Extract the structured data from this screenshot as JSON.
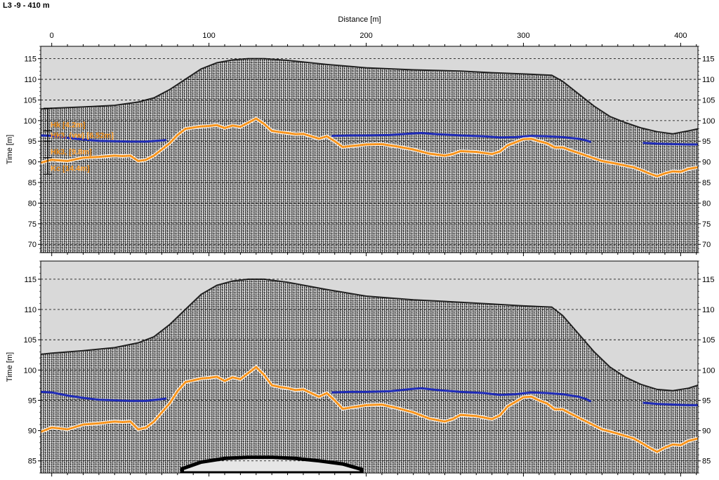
{
  "title": "L3 -9 - 410 m",
  "chart_data": [
    {
      "type": "line",
      "title": "L3 -9 - 410 m",
      "xlabel": "Distance [m]",
      "ylabel": "Time [m]",
      "xlim": [
        -7,
        411
      ],
      "ylim": [
        68,
        118
      ],
      "xticks": [
        0,
        100,
        200,
        300,
        400
      ],
      "yticks": [
        70,
        75,
        80,
        85,
        90,
        95,
        100,
        105,
        110,
        115
      ],
      "grid": true,
      "background": "#d9d9d9",
      "surface": {
        "x": [
          -7,
          0,
          20,
          40,
          55,
          65,
          75,
          85,
          95,
          105,
          115,
          125,
          135,
          150,
          175,
          200,
          230,
          260,
          280,
          300,
          318,
          325,
          335,
          345,
          355,
          365,
          375,
          385,
          395,
          405,
          411
        ],
        "y": [
          102.8,
          103,
          103.3,
          103.7,
          104.5,
          105.5,
          107.5,
          110,
          112.5,
          114,
          114.7,
          115,
          115,
          114.6,
          113.6,
          112.8,
          112.3,
          112,
          111.6,
          111.3,
          111,
          109.5,
          106.5,
          103.5,
          101,
          99.5,
          98.2,
          97.3,
          96.8,
          97.5,
          98
        ]
      },
      "labels": [
        {
          "text": "Hk [4.2m]",
          "y": 99
        },
        {
          "text": "Hk3, (vw) [6.52m]",
          "y": 96.5
        },
        {
          "text": "Hk3, [9.8m]",
          "y": 92.5
        },
        {
          "text": "Kc [14.4m]",
          "y": 88.5
        }
      ],
      "series": [
        {
          "color": "#1f2bb8",
          "segments": [
            {
              "x": [
                -7,
                0,
                10,
                20,
                30,
                40,
                50,
                60,
                70,
                73
              ],
              "y": [
                96.4,
                96.3,
                95.8,
                95.4,
                95.1,
                95.0,
                94.9,
                94.9,
                95.2,
                95.3
              ]
            },
            {
              "x": [
                178,
                190,
                200,
                215,
                230,
                235,
                245,
                260,
                275,
                285,
                295,
                305,
                315,
                325,
                335,
                340,
                343
              ],
              "y": [
                96.3,
                96.4,
                96.4,
                96.5,
                96.9,
                97.0,
                96.7,
                96.4,
                96.2,
                95.9,
                96.0,
                96.3,
                96.2,
                96.0,
                95.6,
                95.2,
                94.8
              ]
            },
            {
              "x": [
                376,
                385,
                395,
                405,
                411
              ],
              "y": [
                94.6,
                94.4,
                94.3,
                94.2,
                94.2
              ]
            }
          ]
        },
        {
          "color": "#f7941d",
          "segments": [
            {
              "x": [
                -7,
                0,
                10,
                20,
                30,
                40,
                45,
                50,
                55,
                60,
                65,
                70,
                75,
                80,
                85,
                90,
                95,
                100,
                105,
                110,
                115,
                120,
                125,
                130,
                135,
                140,
                145,
                150,
                155,
                160,
                165,
                170,
                175,
                180,
                185,
                190,
                200,
                210,
                220,
                230,
                240,
                250,
                255,
                260,
                270,
                280,
                285,
                290,
                300,
                305,
                310,
                315,
                320,
                325,
                330,
                340,
                350,
                360,
                370,
                375,
                380,
                385,
                390,
                395,
                400,
                405,
                411
              ],
              "y": [
                89.8,
                90.5,
                90.2,
                91.0,
                91.2,
                91.5,
                91.4,
                91.5,
                90.2,
                90.5,
                91.5,
                93.0,
                94.5,
                96.5,
                98.0,
                98.3,
                98.6,
                98.7,
                98.9,
                98.2,
                98.8,
                98.5,
                99.5,
                100.5,
                99.2,
                97.5,
                97.2,
                97.0,
                96.7,
                96.8,
                96.2,
                95.6,
                96.2,
                95.0,
                93.6,
                93.8,
                94.2,
                94.3,
                93.7,
                93.0,
                92.0,
                91.5,
                91.9,
                92.6,
                92.4,
                91.9,
                92.5,
                94.0,
                95.5,
                95.6,
                95.0,
                94.5,
                93.5,
                93.5,
                92.8,
                91.5,
                90.2,
                89.5,
                88.7,
                88.0,
                87.2,
                86.5,
                87.2,
                87.7,
                87.6,
                88.3,
                88.7
              ]
            }
          ]
        }
      ]
    },
    {
      "type": "line",
      "xlabel": "",
      "ylabel": "Time [m]",
      "xlim": [
        -7,
        411
      ],
      "ylim": [
        83,
        118
      ],
      "xticks": [
        0,
        100,
        200,
        300,
        400
      ],
      "yticks": [
        85,
        90,
        95,
        100,
        105,
        110,
        115
      ],
      "grid": true,
      "background": "#d9d9d9",
      "surface": {
        "x": [
          -7,
          0,
          20,
          40,
          55,
          65,
          75,
          85,
          95,
          105,
          115,
          125,
          135,
          150,
          175,
          200,
          230,
          260,
          280,
          300,
          318,
          325,
          335,
          345,
          355,
          365,
          375,
          385,
          395,
          405,
          411
        ],
        "y": [
          102.6,
          102.8,
          103.2,
          103.7,
          104.5,
          105.5,
          107.5,
          110,
          112.5,
          114,
          114.7,
          115,
          115,
          114.5,
          113.3,
          112.2,
          111.6,
          111.2,
          110.9,
          110.6,
          110.4,
          109,
          106,
          103,
          100.5,
          98.8,
          97.6,
          96.8,
          96.6,
          97.0,
          97.5
        ]
      },
      "dark_blob": {
        "x": [
          83,
          95,
          110,
          125,
          140,
          155,
          170,
          185,
          197
        ],
        "y": [
          83.7,
          84.8,
          85.4,
          85.6,
          85.6,
          85.4,
          85.0,
          84.5,
          83.6
        ]
      },
      "series": [
        {
          "color": "#1f2bb8",
          "segments": [
            {
              "x": [
                -7,
                0,
                10,
                20,
                30,
                40,
                50,
                60,
                70,
                73
              ],
              "y": [
                96.4,
                96.3,
                95.8,
                95.4,
                95.1,
                95.0,
                94.9,
                94.9,
                95.2,
                95.3
              ]
            },
            {
              "x": [
                178,
                190,
                200,
                215,
                230,
                235,
                245,
                260,
                275,
                285,
                295,
                305,
                315,
                325,
                335,
                340,
                343
              ],
              "y": [
                96.3,
                96.4,
                96.4,
                96.5,
                96.9,
                97.0,
                96.7,
                96.4,
                96.2,
                95.9,
                96.0,
                96.3,
                96.2,
                96.0,
                95.6,
                95.2,
                94.8
              ]
            },
            {
              "x": [
                376,
                385,
                395,
                405,
                411
              ],
              "y": [
                94.6,
                94.4,
                94.3,
                94.2,
                94.2
              ]
            }
          ]
        },
        {
          "color": "#f7941d",
          "segments": [
            {
              "x": [
                -7,
                0,
                10,
                20,
                30,
                40,
                45,
                50,
                55,
                60,
                65,
                70,
                75,
                80,
                85,
                90,
                95,
                100,
                105,
                110,
                115,
                120,
                125,
                130,
                135,
                140,
                145,
                150,
                155,
                160,
                165,
                170,
                175,
                180,
                185,
                190,
                200,
                210,
                220,
                230,
                240,
                250,
                255,
                260,
                270,
                280,
                285,
                290,
                300,
                305,
                310,
                315,
                320,
                325,
                330,
                340,
                350,
                360,
                370,
                375,
                380,
                385,
                390,
                395,
                400,
                405,
                411
              ],
              "y": [
                89.8,
                90.5,
                90.2,
                91.0,
                91.2,
                91.5,
                91.4,
                91.5,
                90.2,
                90.5,
                91.5,
                93.0,
                94.5,
                96.5,
                98.0,
                98.3,
                98.6,
                98.7,
                98.9,
                98.2,
                98.8,
                98.5,
                99.5,
                100.5,
                99.2,
                97.5,
                97.2,
                97.0,
                96.7,
                96.8,
                96.2,
                95.6,
                96.2,
                95.0,
                93.6,
                93.8,
                94.2,
                94.3,
                93.7,
                93.0,
                92.0,
                91.5,
                91.9,
                92.6,
                92.4,
                91.9,
                92.5,
                94.0,
                95.5,
                95.6,
                95.0,
                94.5,
                93.5,
                93.5,
                92.8,
                91.5,
                90.2,
                89.5,
                88.7,
                88.0,
                87.2,
                86.5,
                87.2,
                87.7,
                87.6,
                88.3,
                88.7
              ]
            }
          ]
        }
      ]
    }
  ]
}
